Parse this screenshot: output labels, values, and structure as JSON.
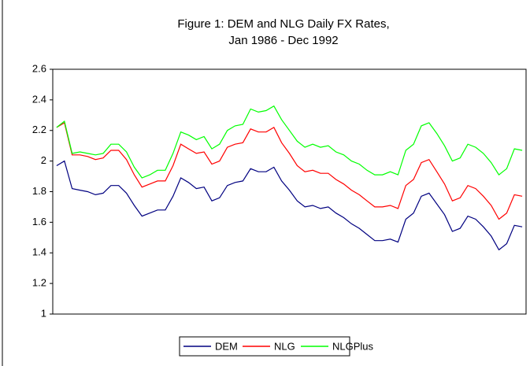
{
  "chart_data": {
    "type": "line",
    "title": "Figure 1: DEM and NLG Daily FX Rates,",
    "subtitle": "Jan 1986 - Dec 1992",
    "categories": [
      null,
      null,
      null,
      null,
      null,
      null,
      null,
      null,
      null,
      null,
      null,
      null,
      null,
      null,
      null,
      null,
      null,
      null,
      null,
      null,
      null,
      null,
      null,
      null,
      null,
      null,
      null,
      null,
      null,
      null,
      null,
      null,
      null,
      null,
      null,
      null,
      null,
      null,
      null,
      null,
      null,
      null,
      null,
      null,
      null,
      null,
      null,
      null,
      null,
      null,
      null,
      null,
      null,
      null,
      null,
      null,
      null,
      null,
      null,
      null,
      null
    ],
    "series": [
      {
        "name": "DEM",
        "color": "#000080",
        "values": [
          1.97,
          2.0,
          1.82,
          1.81,
          1.8,
          1.78,
          1.79,
          1.84,
          1.84,
          1.79,
          1.71,
          1.64,
          1.66,
          1.68,
          1.68,
          1.77,
          1.89,
          1.86,
          1.82,
          1.83,
          1.74,
          1.76,
          1.84,
          1.86,
          1.87,
          1.95,
          1.93,
          1.93,
          1.96,
          1.87,
          1.81,
          1.74,
          1.7,
          1.71,
          1.69,
          1.7,
          1.66,
          1.63,
          1.59,
          1.56,
          1.52,
          1.48,
          1.48,
          1.49,
          1.47,
          1.62,
          1.66,
          1.77,
          1.79,
          1.72,
          1.65,
          1.54,
          1.56,
          1.64,
          1.62,
          1.57,
          1.51,
          1.42,
          1.46,
          1.58,
          1.57
        ]
      },
      {
        "name": "NLG",
        "color": "#ff0000",
        "values": [
          2.22,
          2.25,
          2.04,
          2.04,
          2.03,
          2.01,
          2.02,
          2.07,
          2.07,
          2.01,
          1.91,
          1.83,
          1.85,
          1.87,
          1.87,
          1.97,
          2.11,
          2.08,
          2.05,
          2.06,
          1.98,
          2.0,
          2.09,
          2.11,
          2.12,
          2.21,
          2.19,
          2.19,
          2.22,
          2.12,
          2.05,
          1.97,
          1.93,
          1.94,
          1.92,
          1.92,
          1.88,
          1.85,
          1.81,
          1.78,
          1.74,
          1.7,
          1.7,
          1.71,
          1.69,
          1.84,
          1.88,
          1.99,
          2.01,
          1.93,
          1.85,
          1.74,
          1.76,
          1.84,
          1.82,
          1.77,
          1.71,
          1.62,
          1.66,
          1.78,
          1.77
        ]
      },
      {
        "name": "NLGPlus",
        "color": "#00ff00",
        "values": [
          2.22,
          2.26,
          2.05,
          2.06,
          2.05,
          2.04,
          2.05,
          2.11,
          2.11,
          2.06,
          1.96,
          1.89,
          1.91,
          1.94,
          1.94,
          2.05,
          2.19,
          2.17,
          2.14,
          2.16,
          2.08,
          2.11,
          2.2,
          2.23,
          2.24,
          2.34,
          2.32,
          2.33,
          2.36,
          2.27,
          2.2,
          2.13,
          2.09,
          2.11,
          2.09,
          2.1,
          2.06,
          2.04,
          2.0,
          1.98,
          1.94,
          1.91,
          1.91,
          1.93,
          1.91,
          2.07,
          2.11,
          2.23,
          2.25,
          2.18,
          2.1,
          2.0,
          2.02,
          2.11,
          2.09,
          2.05,
          1.99,
          1.91,
          1.95,
          2.08,
          2.07
        ]
      }
    ],
    "ylim": [
      1,
      2.6
    ],
    "yticks": [
      1,
      1.2,
      1.4,
      1.6,
      1.8,
      2,
      2.2,
      2.4,
      2.6
    ],
    "grid": false,
    "legend": "bottom"
  }
}
